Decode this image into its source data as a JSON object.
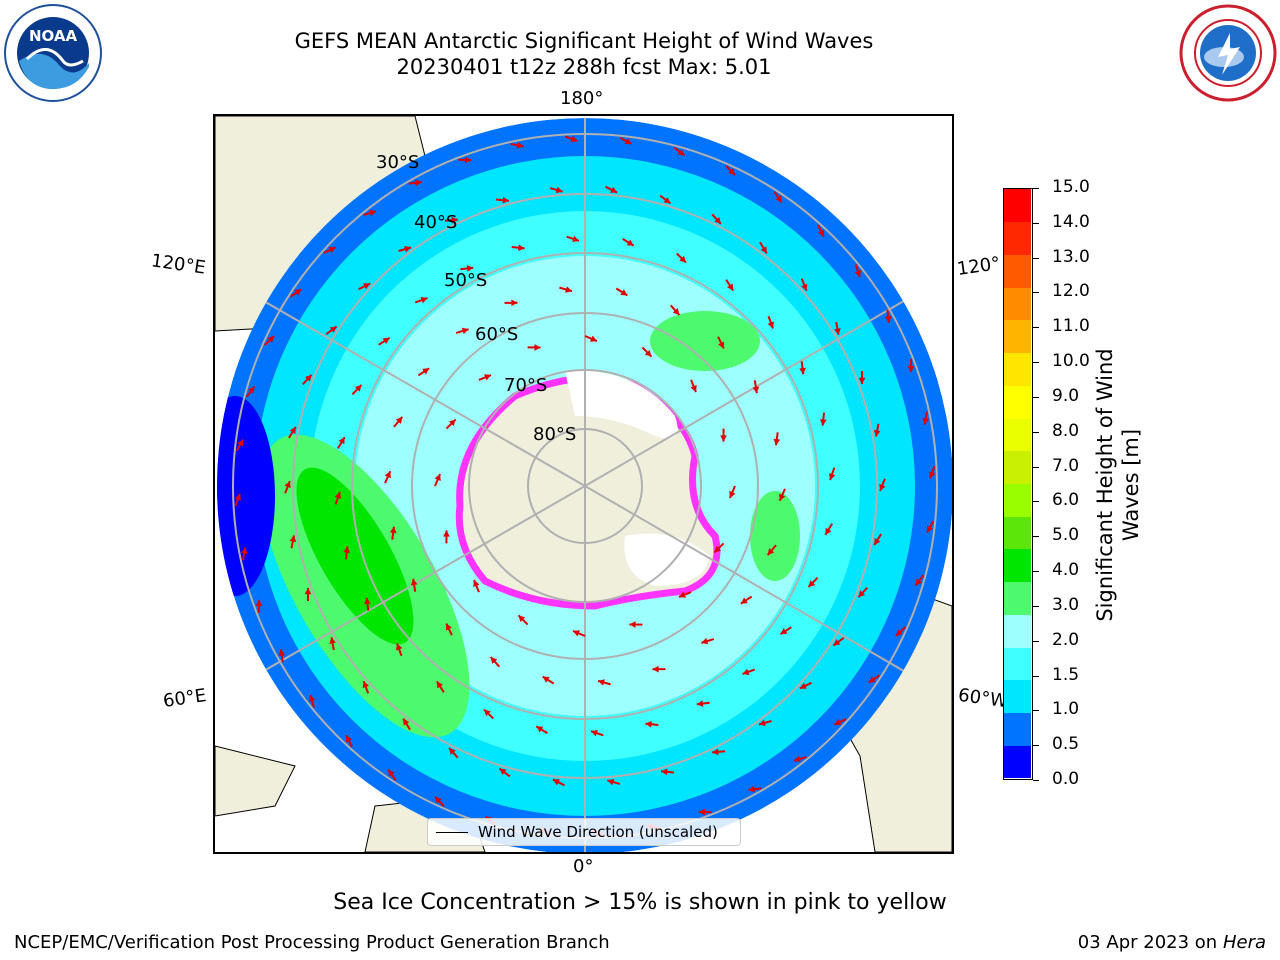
{
  "header": {
    "title_line1": "GEFS MEAN Antarctic Significant Height of Wind Waves",
    "title_line2": "20230401 t12z 288h fcst   Max: 5.01"
  },
  "logos": {
    "left": "NOAA",
    "right": "NATIONAL WEATHER SERVICE"
  },
  "map": {
    "longitude_labels": {
      "top": "180°",
      "bottom": "0°",
      "upper_left": "120°E",
      "upper_right": "120°",
      "lower_left": "60°E",
      "lower_right": "60°W"
    },
    "latitude_labels": [
      "30°S",
      "40°S",
      "50°S",
      "60°S",
      "70°S",
      "80°S"
    ],
    "legend": "Wind Wave Direction (unscaled)"
  },
  "colorbar": {
    "label": "Significant Height of Wind Waves [m]",
    "ticks": [
      "15.0",
      "14.0",
      "13.0",
      "12.0",
      "11.0",
      "10.0",
      "9.0",
      "8.0",
      "7.0",
      "6.0",
      "5.0",
      "4.0",
      "3.0",
      "2.0",
      "1.5",
      "1.0",
      "0.5",
      "0.0"
    ],
    "colors": [
      "#0000ff",
      "#0073ff",
      "#00e6ff",
      "#40ffff",
      "#9effff",
      "#4dfa6e",
      "#00e600",
      "#5de60a",
      "#99ff00",
      "#c8f000",
      "#eaff00",
      "#ffff00",
      "#ffe600",
      "#ffb400",
      "#ff8c00",
      "#ff5a00",
      "#ff2800",
      "#ff0000"
    ]
  },
  "notes": {
    "sea_ice": "Sea Ice Concentration > 15% is shown in pink to yellow"
  },
  "footer": {
    "left": "NCEP/EMC/Verification Post Processing Product Generation Branch",
    "right_date": "03 Apr 2023 on ",
    "right_host": "Hera"
  }
}
